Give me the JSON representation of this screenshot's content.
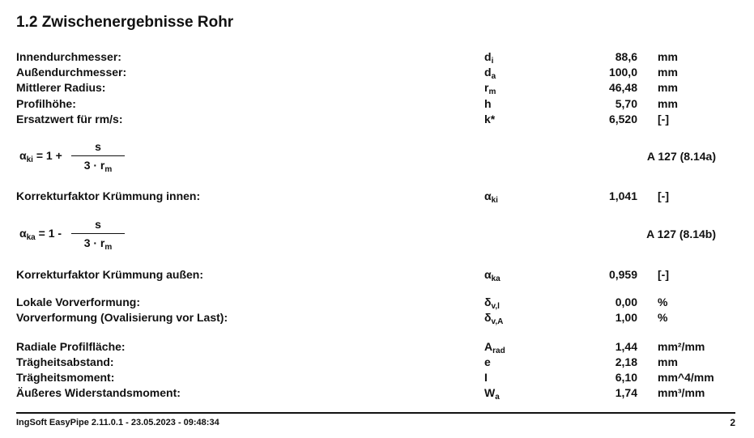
{
  "title": "1.2 Zwischenergebnisse Rohr",
  "rows1": [
    {
      "label": "Innendurchmesser:",
      "sym": "d",
      "sub": "i",
      "value": "88,6",
      "unit": "mm"
    },
    {
      "label": "Außendurchmesser:",
      "sym": "d",
      "sub": "a",
      "value": "100,0",
      "unit": "mm"
    },
    {
      "label": "Mittlerer Radius:",
      "sym": "r",
      "sub": "m",
      "value": "46,48",
      "unit": "mm"
    },
    {
      "label": "Profilhöhe:",
      "sym": "h",
      "sub": "",
      "value": "5,70",
      "unit": "mm"
    },
    {
      "label": "Ersatzwert für rm/s:",
      "sym": "k*",
      "sub": "",
      "value": "6,520",
      "unit": "[-]"
    }
  ],
  "formula1": {
    "lhs": "α",
    "lhs_sub": "ki",
    "op": " = 1 +",
    "num": "s",
    "den": "3 · r",
    "den_sub": "m",
    "ref": "A 127 (8.14a)"
  },
  "row_ki": {
    "label": "Korrekturfaktor Krümmung innen:",
    "sym": "α",
    "sub": "ki",
    "value": "1,041",
    "unit": "[-]"
  },
  "formula2": {
    "lhs": "α",
    "lhs_sub": "ka",
    "op": " = 1 -",
    "num": "s",
    "den": "3 · r",
    "den_sub": "m",
    "ref": "A 127 (8.14b)"
  },
  "row_ka": {
    "label": "Korrekturfaktor Krümmung außen:",
    "sym": "α",
    "sub": "ka",
    "value": "0,959",
    "unit": "[-]"
  },
  "rows2": [
    {
      "label": "Lokale Vorverformung:",
      "sym": "δ",
      "sub": "v,l",
      "value": "0,00",
      "unit": "%"
    },
    {
      "label": "Vorverformung (Ovalisierung vor Last):",
      "sym": "δ",
      "sub": "v,A",
      "value": "1,00",
      "unit": "%"
    }
  ],
  "rows3": [
    {
      "label": "Radiale Profilfläche:",
      "sym": "A",
      "sub": "rad",
      "value": "1,44",
      "unit": "mm²/mm"
    },
    {
      "label": "Trägheitsabstand:",
      "sym": "e",
      "sub": "",
      "value": "2,18",
      "unit": "mm"
    },
    {
      "label": "Trägheitsmoment:",
      "sym": "I",
      "sub": "",
      "value": "6,10",
      "unit": "mm^4/mm"
    },
    {
      "label": "Äußeres Widerstandsmoment:",
      "sym": "W",
      "sub": "a",
      "value": "1,74",
      "unit": "mm³/mm"
    }
  ],
  "footer": {
    "text": "IngSoft EasyPipe 2.11.0.1 - 23.05.2023 - 09:48:34",
    "page": "2"
  }
}
